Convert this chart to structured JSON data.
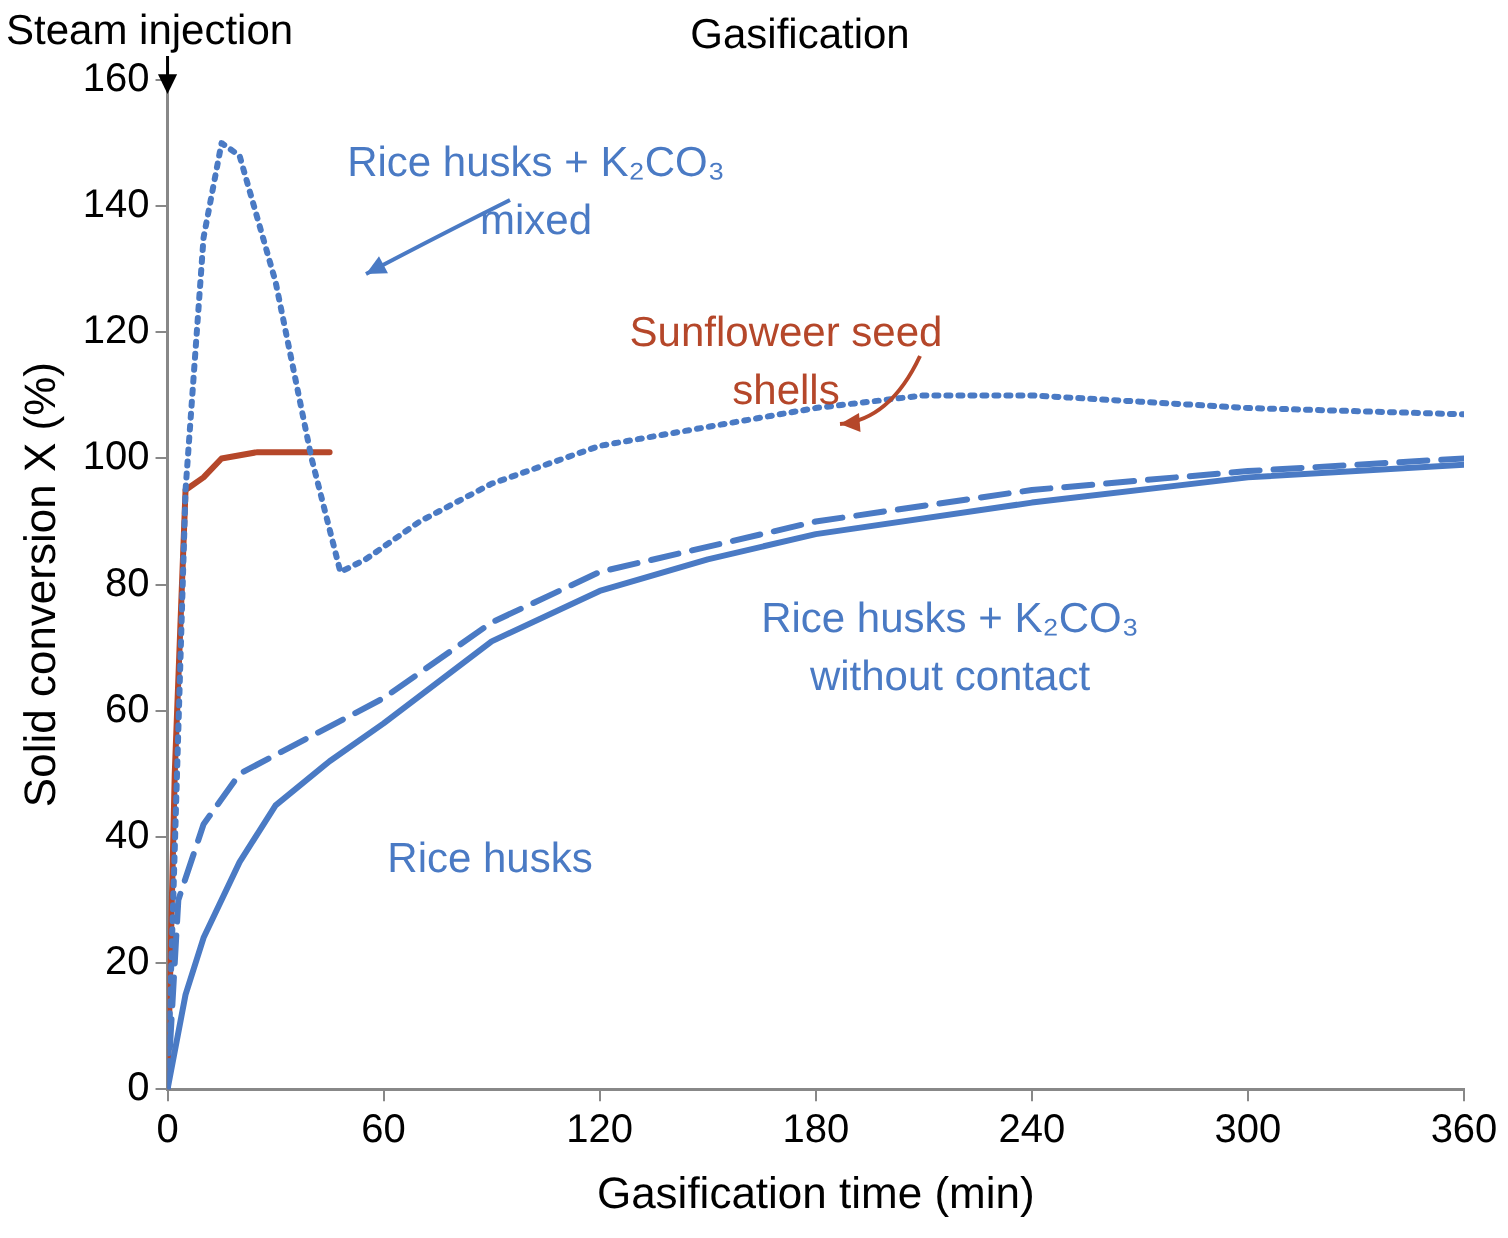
{
  "chart_data": {
    "type": "line",
    "xlabel": "Gasification time (min)",
    "ylabel": "Solid conversion X (%)",
    "xlim": [
      0,
      360
    ],
    "xticks": [
      0,
      60,
      120,
      180,
      240,
      300,
      360
    ],
    "ylim": [
      0,
      160
    ],
    "yticks": [
      0,
      20,
      40,
      60,
      80,
      100,
      120,
      140,
      160
    ],
    "grid": false,
    "legend": false,
    "marker": "none",
    "annotations": [
      "Steam injection",
      "Gasification"
    ],
    "series": [
      {
        "name": "Rice husks",
        "color": "#4a7ac4",
        "line_style": "solid",
        "x": [
          0,
          5,
          10,
          20,
          30,
          45,
          60,
          90,
          120,
          150,
          180,
          240,
          300,
          360
        ],
        "values": [
          0,
          15,
          24,
          36,
          45,
          52,
          58,
          71,
          79,
          84,
          88,
          93,
          97,
          99
        ]
      },
      {
        "name": "Rice husks + K₂CO₃ without contact",
        "color": "#4a7ac4",
        "line_style": "dashed",
        "x": [
          0,
          3,
          10,
          20,
          40,
          60,
          90,
          120,
          180,
          240,
          300,
          360
        ],
        "values": [
          0,
          30,
          42,
          50,
          56,
          62,
          74,
          82,
          90,
          95,
          98,
          100
        ]
      },
      {
        "name": "Rice husks + K₂CO₃ mixed",
        "color": "#4a7ac4",
        "line_style": "dotted",
        "x": [
          0,
          5,
          10,
          15,
          20,
          30,
          40,
          48,
          55,
          70,
          90,
          120,
          150,
          180,
          210,
          240,
          270,
          300,
          360
        ],
        "values": [
          0,
          95,
          135,
          150,
          148,
          128,
          100,
          82,
          84,
          90,
          96,
          102,
          105,
          108,
          110,
          110,
          109,
          108,
          107
        ]
      },
      {
        "name": "Sunfloweer seed shells",
        "color": "#b5472a",
        "line_style": "solid",
        "x": [
          0,
          2,
          5,
          10,
          15,
          25,
          45
        ],
        "values": [
          0,
          50,
          95,
          97,
          100,
          101,
          101
        ]
      }
    ]
  }
}
